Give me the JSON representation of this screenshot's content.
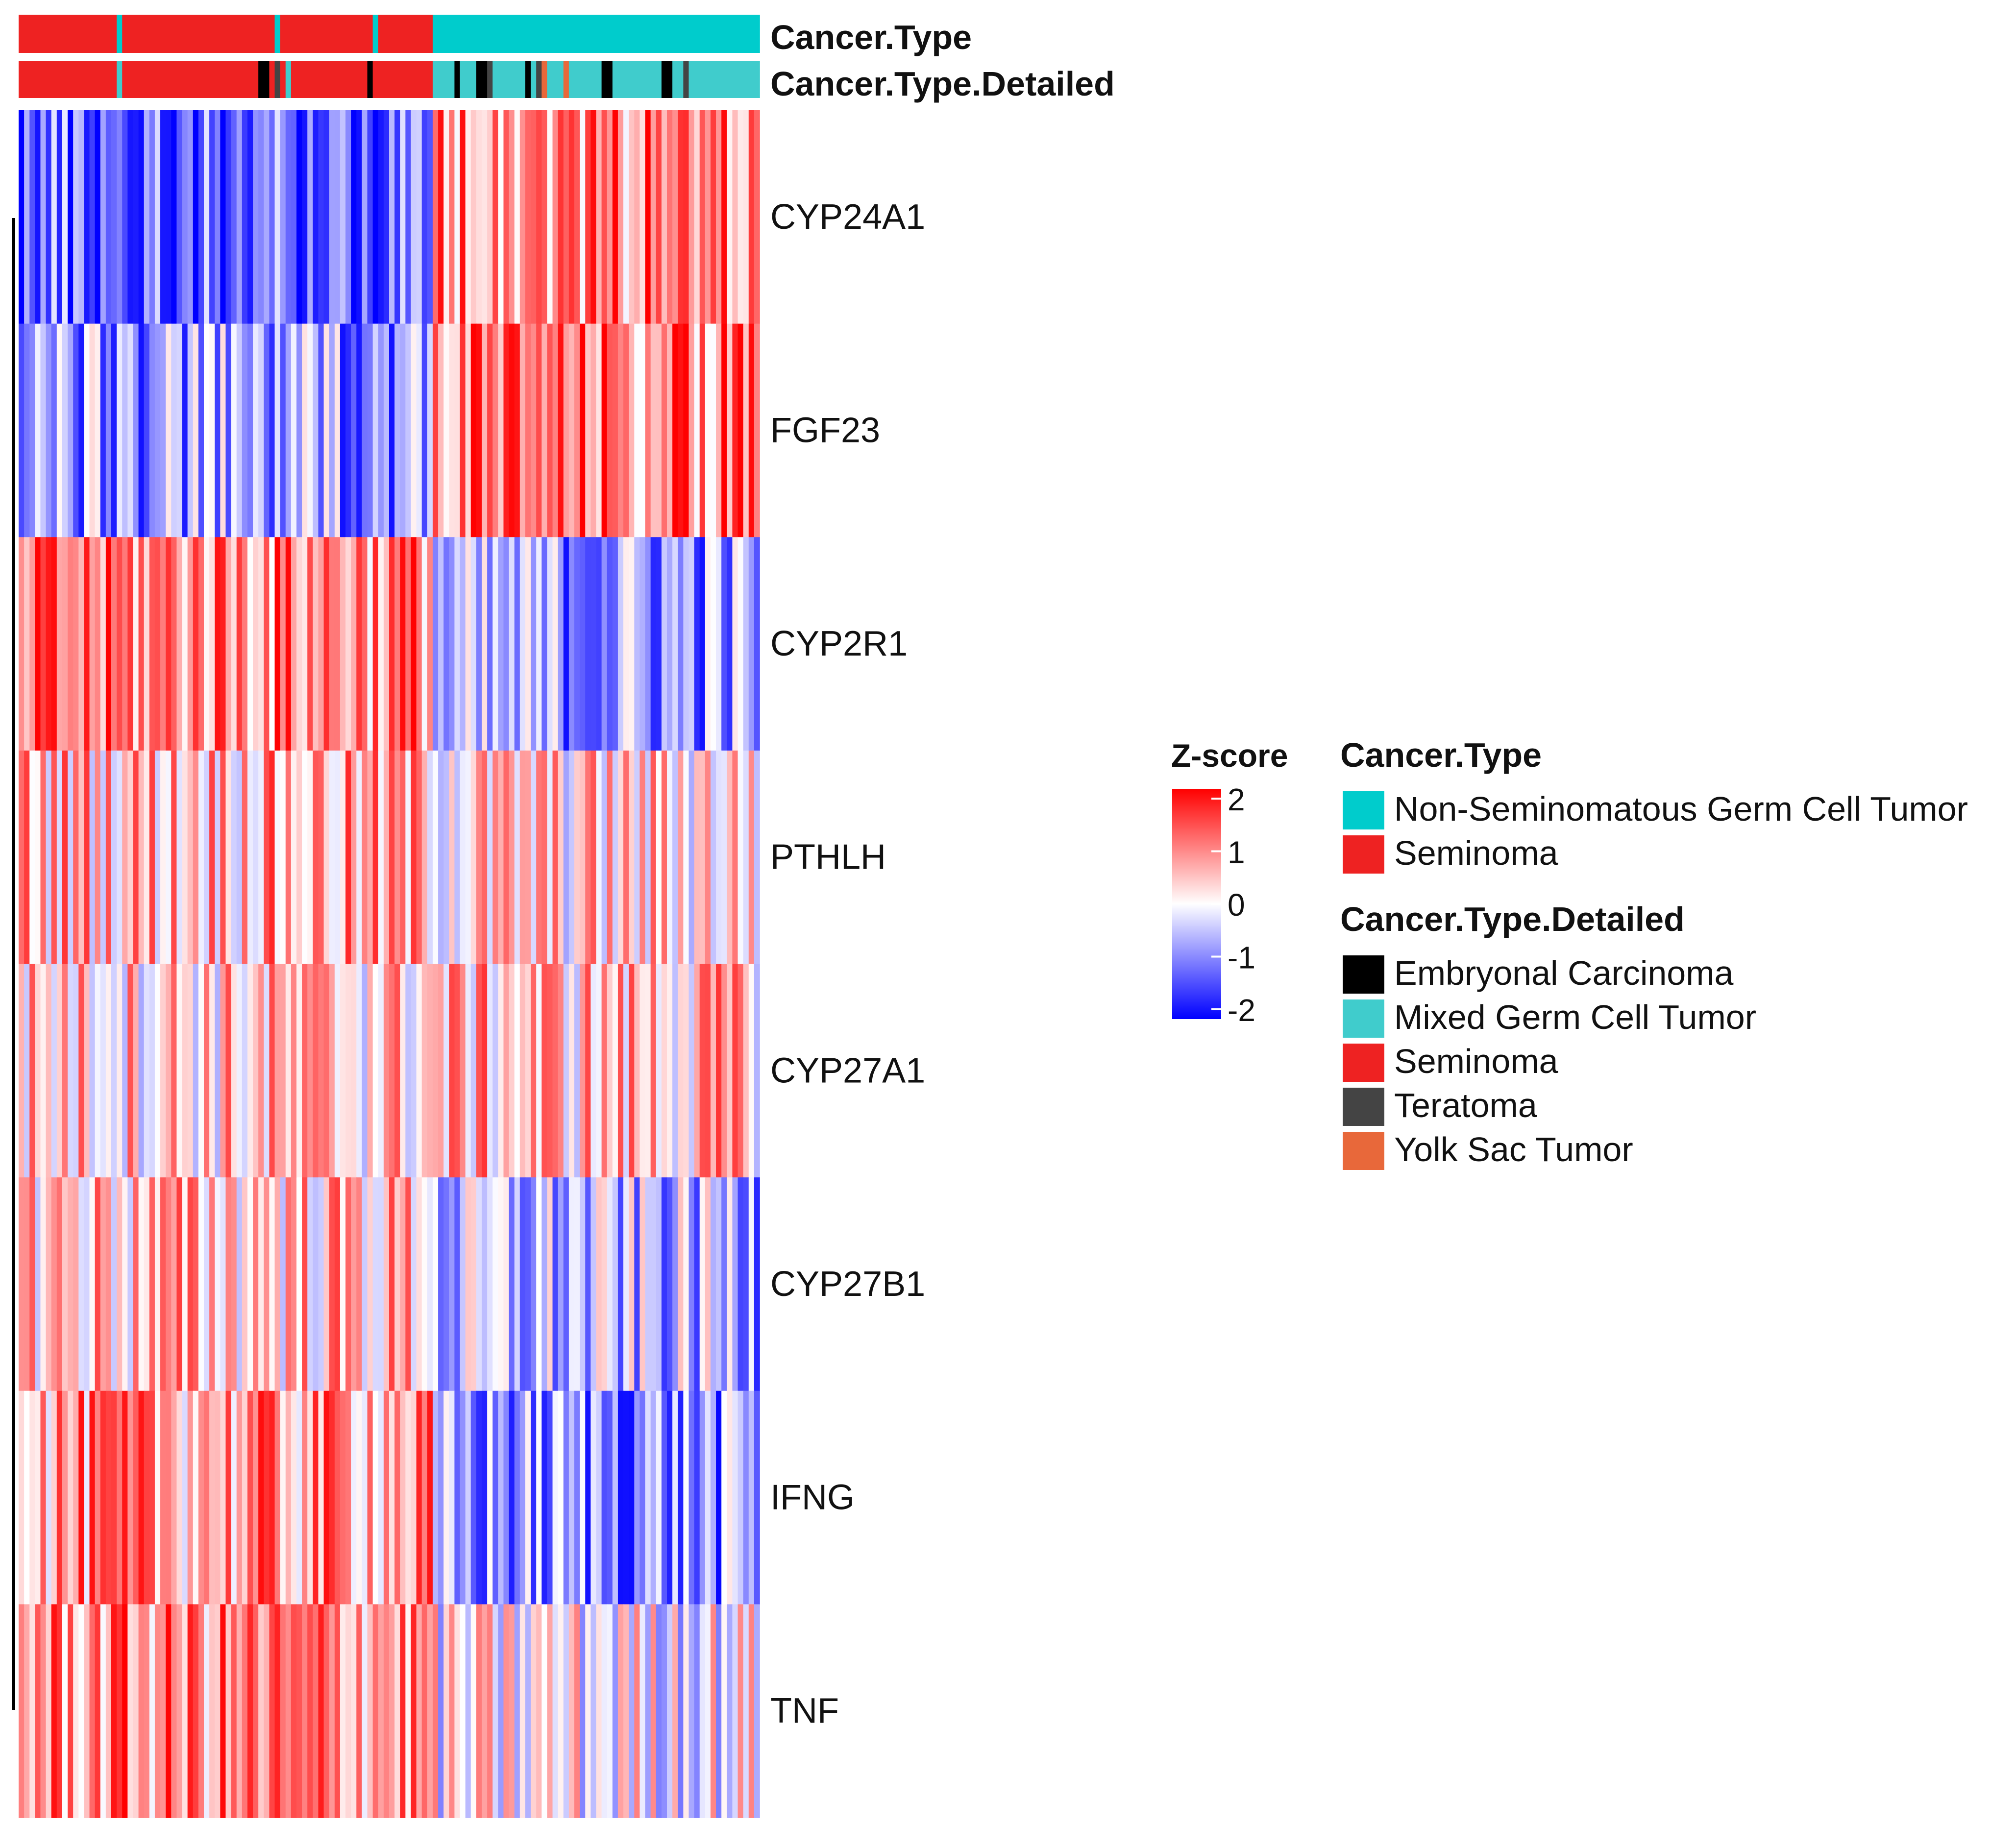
{
  "chart_data": {
    "type": "heatmap",
    "title": "",
    "n_samples": 136,
    "split_index": 76,
    "rows": [
      "CYP24A1",
      "FGF23",
      "CYP2R1",
      "PTHLH",
      "CYP27A1",
      "CYP27B1",
      "IFNG",
      "TNF"
    ],
    "row_means_group1": [
      -1.2,
      -0.8,
      1.0,
      0.6,
      0.4,
      0.5,
      0.8,
      0.9
    ],
    "row_means_group2": [
      1.0,
      1.0,
      -0.8,
      0.3,
      0.5,
      -0.6,
      -0.9,
      0.0
    ],
    "color_scale": {
      "title": "Z-score",
      "min": -2,
      "max": 2,
      "ticks": [
        "2",
        "1",
        "0",
        "-1",
        "-2"
      ],
      "low_color": "#0000ff",
      "mid_color": "#ffffff",
      "high_color": "#ff0000"
    },
    "annotations": [
      {
        "name": "Cancer.Type",
        "groups": [
          {
            "label": "Non-Seminomatous Germ Cell Tumor",
            "color": "#00cccc"
          },
          {
            "label": "Seminoma",
            "color": "#ee2222"
          }
        ]
      },
      {
        "name": "Cancer.Type.Detailed",
        "groups": [
          {
            "label": "Embryonal Carcinoma",
            "color": "#000000"
          },
          {
            "label": "Mixed Germ Cell Tumor",
            "color": "#40cccc"
          },
          {
            "label": "Seminoma",
            "color": "#ee2222"
          },
          {
            "label": "Teratoma",
            "color": "#444444"
          },
          {
            "label": "Yolk Sac Tumor",
            "color": "#e8683a"
          }
        ]
      }
    ],
    "legend_position": "right"
  }
}
